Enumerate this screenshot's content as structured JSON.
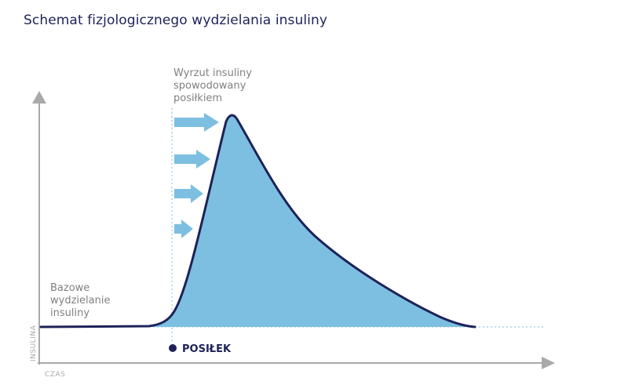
{
  "title": "Schemat fizjologicznego wydzielania insuliny",
  "labels": {
    "y_axis": "INSULINA",
    "x_axis": "CZAS",
    "meal": "POSIŁEK",
    "basal": [
      "Bazowe",
      "wydzielanie",
      "insuliny"
    ],
    "spike": [
      "Wyrzut insuliny",
      "spowodowany",
      "posiłkiem"
    ]
  },
  "colors": {
    "title": "#1d2259",
    "curve_outline": "#1d2259",
    "curve_fill": "#7dbfe0",
    "arrows": "#7dbfe0",
    "axes": "#a9a9a9",
    "annotation_text": "#808080",
    "meal_marker": "#1d2259",
    "dotted_lines": "#7dbfe0"
  },
  "icons": {
    "arrows": "right-arrow",
    "meal_marker": "filled-circle"
  }
}
